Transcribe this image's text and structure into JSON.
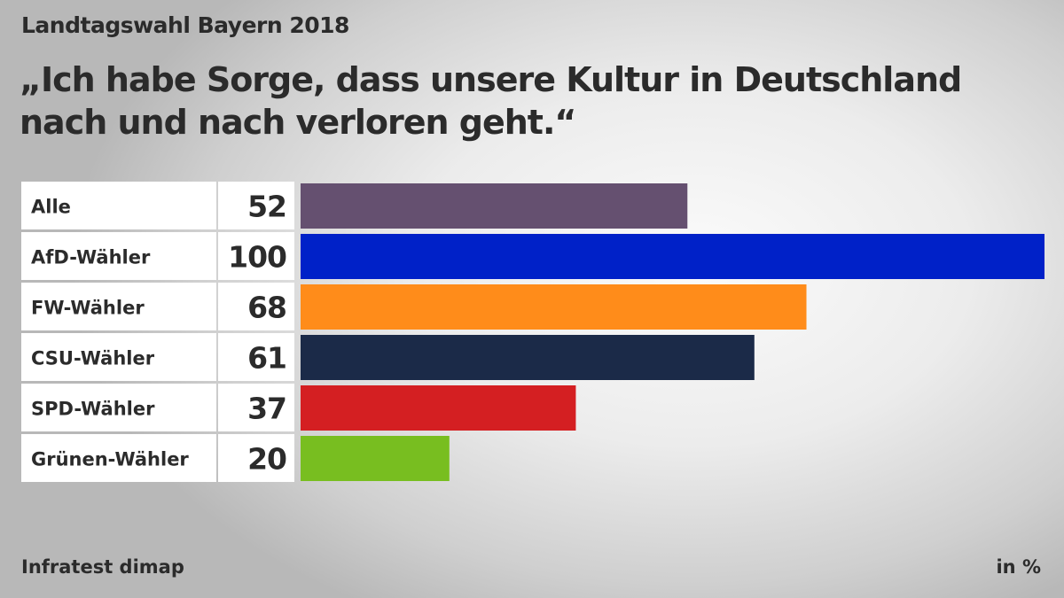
{
  "header": {
    "supertitle": "Landtagswahl Bayern 2018",
    "title": "„Ich habe Sorge, dass unsere Kultur in Deutschland nach und nach verloren geht.“"
  },
  "footer": {
    "source": "Infratest dimap",
    "unit": "in %"
  },
  "chart_data": {
    "type": "bar",
    "orientation": "horizontal",
    "title": "„Ich habe Sorge, dass unsere Kultur in Deutschland nach und nach verloren geht.“",
    "categories": [
      "Alle",
      "AfD-Wähler",
      "FW-Wähler",
      "CSU-Wähler",
      "SPD-Wähler",
      "Grünen-Wähler"
    ],
    "values": [
      52,
      100,
      68,
      61,
      37,
      20
    ],
    "colors": [
      "#655070",
      "#0021c8",
      "#ff8c1a",
      "#1b2a48",
      "#d41f22",
      "#78be20"
    ],
    "xlim": [
      0,
      100
    ],
    "unit": "%",
    "grid": false,
    "legend": "none"
  }
}
